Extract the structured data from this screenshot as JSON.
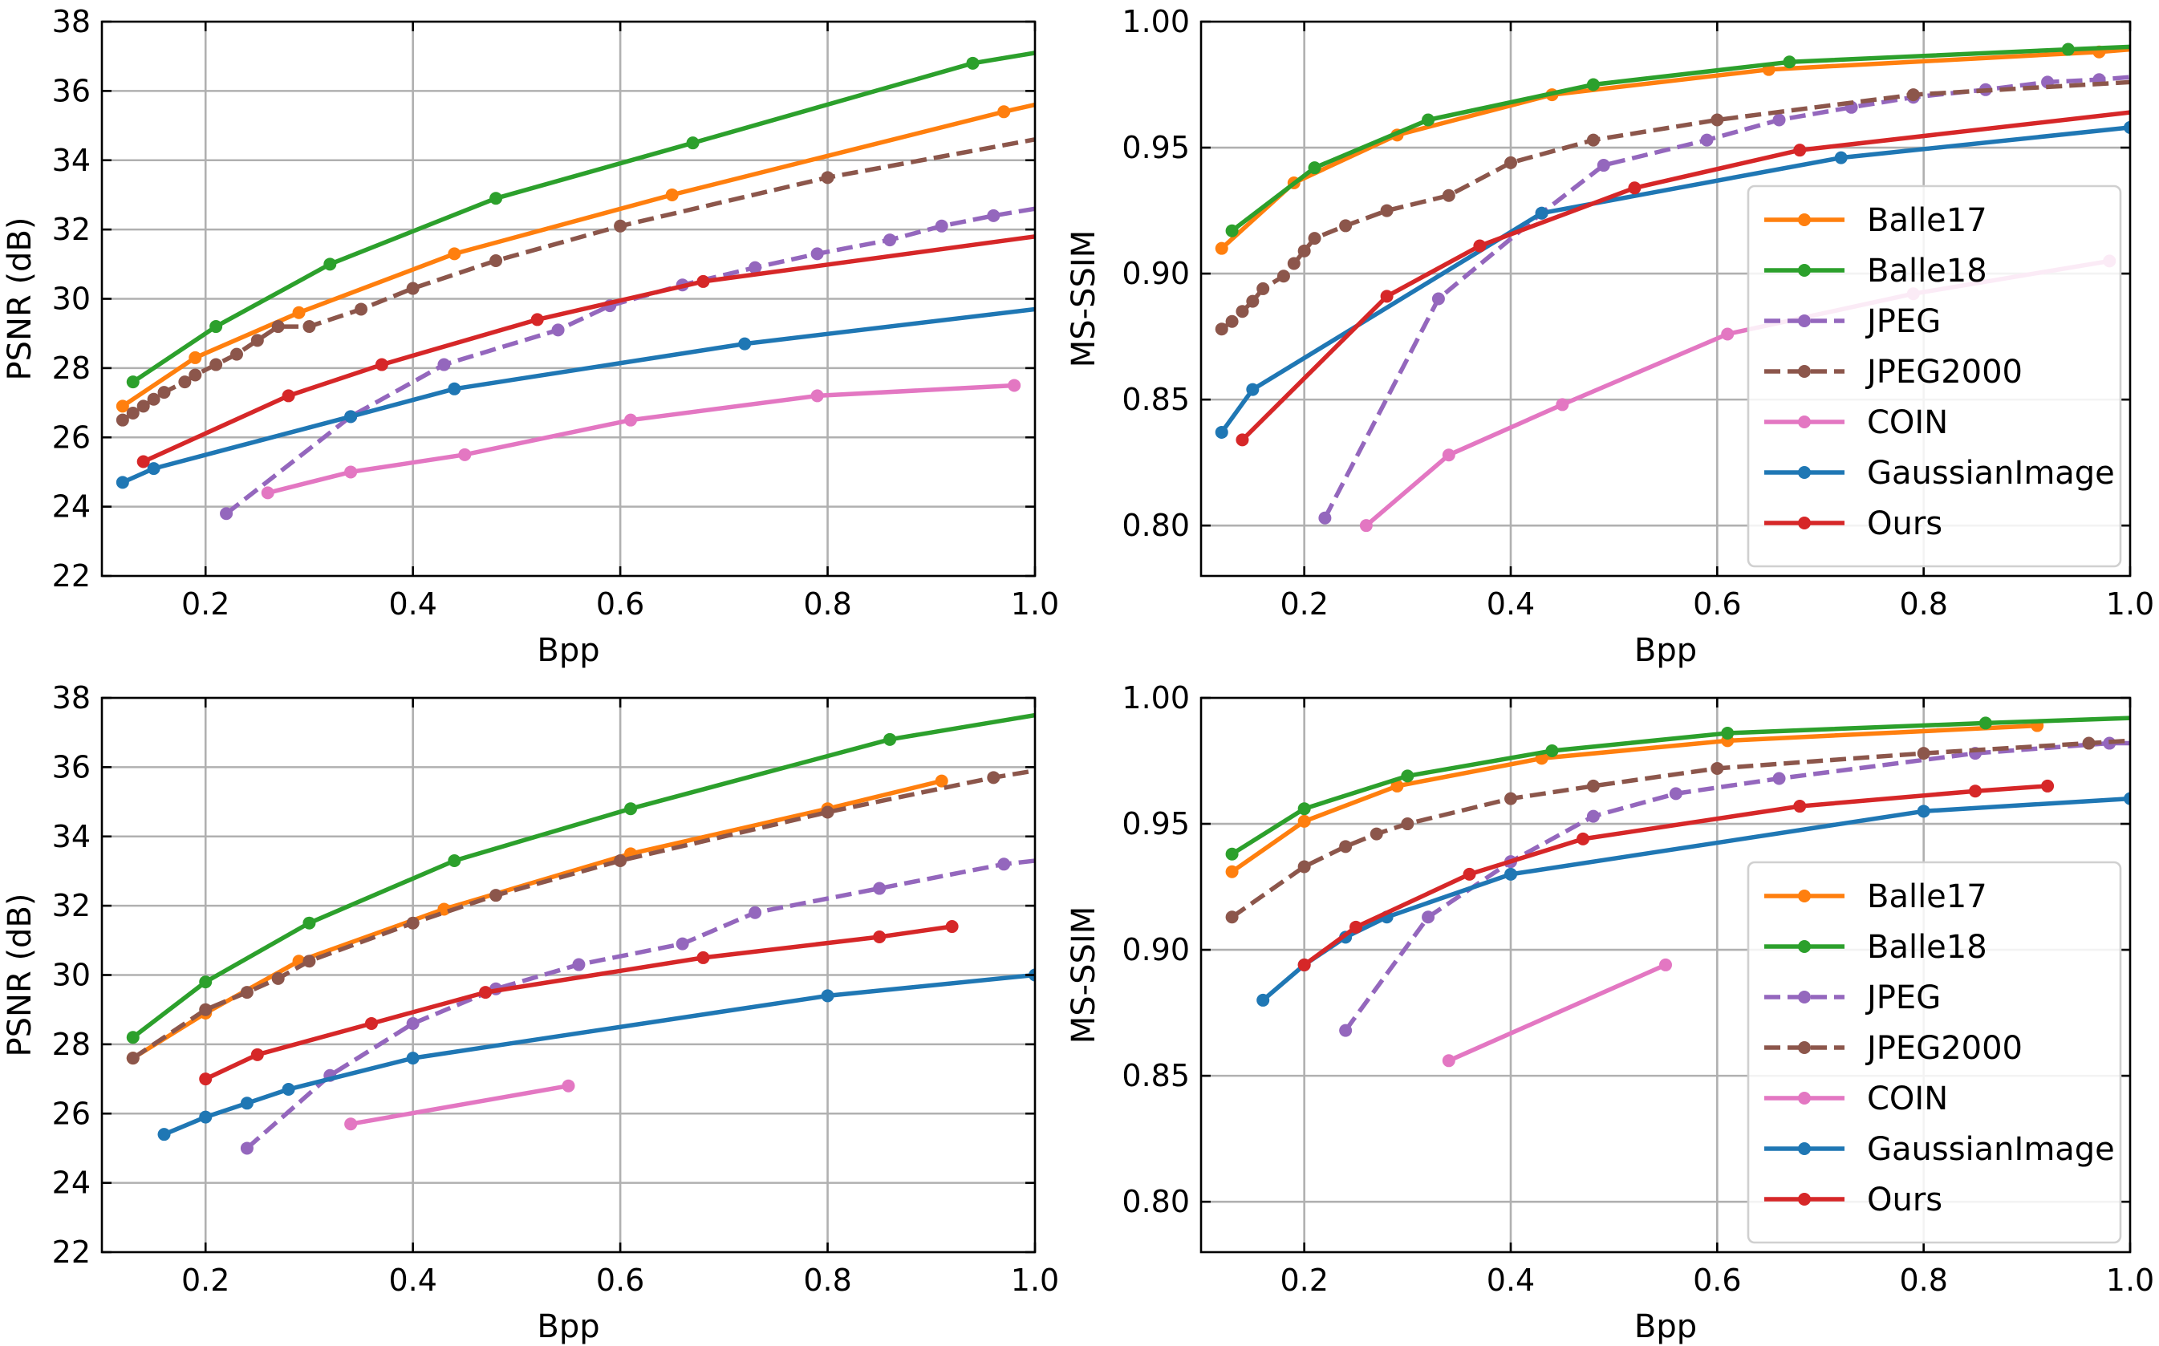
{
  "series_styles": [
    {
      "name": "Balle17",
      "color": "#ff7f0e",
      "dash": false
    },
    {
      "name": "Balle18",
      "color": "#2ca02c",
      "dash": false
    },
    {
      "name": "JPEG",
      "color": "#9467bd",
      "dash": true
    },
    {
      "name": "JPEG2000",
      "color": "#8c564b",
      "dash": true
    },
    {
      "name": "COIN",
      "color": "#e377c2",
      "dash": false
    },
    {
      "name": "GaussianImage",
      "color": "#1f77b4",
      "dash": false
    },
    {
      "name": "Ours",
      "color": "#d62728",
      "dash": false
    }
  ],
  "chart_data": [
    {
      "type": "line",
      "title": "",
      "xlabel": "Bpp",
      "ylabel": "PSNR (dB)",
      "xlim": [
        0.1,
        1.0
      ],
      "ylim": [
        22,
        38
      ],
      "xticks": [
        "0.2",
        "0.4",
        "0.6",
        "0.8",
        "1.0"
      ],
      "xtick_values": [
        0.2,
        0.4,
        0.6,
        0.8,
        1.0
      ],
      "yticks": [
        "22",
        "24",
        "26",
        "28",
        "30",
        "32",
        "34",
        "36",
        "38"
      ],
      "ytick_values": [
        22,
        24,
        26,
        28,
        30,
        32,
        34,
        36,
        38
      ],
      "grid": true,
      "legend": null,
      "series": [
        {
          "name": "Balle17",
          "x": [
            0.12,
            0.19,
            0.29,
            0.44,
            0.65,
            0.97
          ],
          "y": [
            26.9,
            28.3,
            29.6,
            31.3,
            33.0,
            35.4
          ],
          "line_to": [
            1.0,
            35.6
          ]
        },
        {
          "name": "Balle18",
          "x": [
            0.13,
            0.21,
            0.32,
            0.48,
            0.67,
            0.94
          ],
          "y": [
            27.6,
            29.2,
            31.0,
            32.9,
            34.5,
            36.8
          ],
          "line_to": [
            1.0,
            37.1
          ]
        },
        {
          "name": "JPEG",
          "x": [
            0.22,
            0.34,
            0.43,
            0.54,
            0.59,
            0.66,
            0.73,
            0.79,
            0.86,
            0.91,
            0.96
          ],
          "y": [
            23.8,
            26.6,
            28.1,
            29.1,
            29.8,
            30.4,
            30.9,
            31.3,
            31.7,
            32.1,
            32.4
          ],
          "line_to": [
            1.0,
            32.6
          ]
        },
        {
          "name": "JPEG2000",
          "x": [
            0.12,
            0.13,
            0.14,
            0.15,
            0.16,
            0.18,
            0.19,
            0.21,
            0.23,
            0.25,
            0.27,
            0.3,
            0.35,
            0.4,
            0.48,
            0.6,
            0.8
          ],
          "y": [
            26.5,
            26.7,
            26.9,
            27.1,
            27.3,
            27.6,
            27.8,
            28.1,
            28.4,
            28.8,
            29.2,
            29.2,
            29.7,
            30.3,
            31.1,
            32.1,
            33.5
          ],
          "line_to": [
            1.0,
            34.6
          ]
        },
        {
          "name": "COIN",
          "x": [
            0.26,
            0.34,
            0.45,
            0.61,
            0.79,
            0.98
          ],
          "y": [
            24.4,
            25.0,
            25.5,
            26.5,
            27.2,
            27.5
          ]
        },
        {
          "name": "GaussianImage",
          "x": [
            0.12,
            0.15,
            0.34,
            0.44,
            0.72
          ],
          "y": [
            24.7,
            25.1,
            26.6,
            27.4,
            28.7
          ],
          "line_to": [
            1.0,
            29.7
          ]
        },
        {
          "name": "Ours",
          "x": [
            0.14,
            0.28,
            0.37,
            0.52,
            0.68
          ],
          "y": [
            25.3,
            27.2,
            28.1,
            29.4,
            30.5
          ],
          "line_to": [
            1.0,
            31.8
          ]
        }
      ]
    },
    {
      "type": "line",
      "title": "",
      "xlabel": "Bpp",
      "ylabel": "MS-SSIM",
      "xlim": [
        0.1,
        1.0
      ],
      "ylim": [
        0.78,
        1.0
      ],
      "xticks": [
        "0.2",
        "0.4",
        "0.6",
        "0.8",
        "1.0"
      ],
      "xtick_values": [
        0.2,
        0.4,
        0.6,
        0.8,
        1.0
      ],
      "yticks": [
        "0.80",
        "0.85",
        "0.90",
        "0.95",
        "1.00"
      ],
      "ytick_values": [
        0.8,
        0.85,
        0.9,
        0.95,
        1.0
      ],
      "grid": true,
      "legend": "lower-right",
      "series": [
        {
          "name": "Balle17",
          "x": [
            0.12,
            0.19,
            0.29,
            0.44,
            0.65,
            0.97
          ],
          "y": [
            0.91,
            0.936,
            0.955,
            0.971,
            0.981,
            0.988
          ],
          "line_to": [
            1.0,
            0.989
          ]
        },
        {
          "name": "Balle18",
          "x": [
            0.13,
            0.21,
            0.32,
            0.48,
            0.67,
            0.94
          ],
          "y": [
            0.917,
            0.942,
            0.961,
            0.975,
            0.984,
            0.989
          ],
          "line_to": [
            1.0,
            0.99
          ]
        },
        {
          "name": "JPEG",
          "x": [
            0.22,
            0.33,
            0.43,
            0.49,
            0.59,
            0.66,
            0.73,
            0.79,
            0.86,
            0.92,
            0.97
          ],
          "y": [
            0.803,
            0.89,
            0.924,
            0.943,
            0.953,
            0.961,
            0.966,
            0.97,
            0.973,
            0.976,
            0.977
          ],
          "line_to": [
            1.0,
            0.978
          ]
        },
        {
          "name": "JPEG2000",
          "x": [
            0.12,
            0.13,
            0.14,
            0.15,
            0.16,
            0.18,
            0.19,
            0.2,
            0.21,
            0.24,
            0.28,
            0.34,
            0.4,
            0.48,
            0.6,
            0.79
          ],
          "y": [
            0.878,
            0.881,
            0.885,
            0.889,
            0.894,
            0.899,
            0.904,
            0.909,
            0.914,
            0.919,
            0.925,
            0.931,
            0.944,
            0.953,
            0.961,
            0.971
          ],
          "line_to": [
            1.0,
            0.976
          ]
        },
        {
          "name": "COIN",
          "x": [
            0.26,
            0.34,
            0.45,
            0.61,
            0.79,
            0.98
          ],
          "y": [
            0.8,
            0.828,
            0.848,
            0.876,
            0.892,
            0.905
          ]
        },
        {
          "name": "GaussianImage",
          "x": [
            0.12,
            0.15,
            0.43,
            0.72,
            1.0
          ],
          "y": [
            0.837,
            0.854,
            0.924,
            0.946,
            0.958
          ]
        },
        {
          "name": "Ours",
          "x": [
            0.14,
            0.28,
            0.37,
            0.52,
            0.68
          ],
          "y": [
            0.834,
            0.891,
            0.911,
            0.934,
            0.949
          ],
          "line_to": [
            1.0,
            0.964
          ]
        }
      ]
    },
    {
      "type": "line",
      "title": "",
      "xlabel": "Bpp",
      "ylabel": "PSNR (dB)",
      "xlim": [
        0.1,
        1.0
      ],
      "ylim": [
        22,
        38
      ],
      "xticks": [
        "0.2",
        "0.4",
        "0.6",
        "0.8",
        "1.0"
      ],
      "xtick_values": [
        0.2,
        0.4,
        0.6,
        0.8,
        1.0
      ],
      "yticks": [
        "22",
        "24",
        "26",
        "28",
        "30",
        "32",
        "34",
        "36",
        "38"
      ],
      "ytick_values": [
        22,
        24,
        26,
        28,
        30,
        32,
        34,
        36,
        38
      ],
      "grid": true,
      "legend": null,
      "series": [
        {
          "name": "Balle17",
          "x": [
            0.13,
            0.2,
            0.29,
            0.43,
            0.61,
            0.8,
            0.91
          ],
          "y": [
            27.6,
            28.9,
            30.4,
            31.9,
            33.5,
            34.8,
            35.6
          ]
        },
        {
          "name": "Balle18",
          "x": [
            0.13,
            0.2,
            0.3,
            0.44,
            0.61,
            0.86
          ],
          "y": [
            28.2,
            29.8,
            31.5,
            33.3,
            34.8,
            36.8
          ],
          "line_to": [
            1.0,
            37.5
          ]
        },
        {
          "name": "JPEG",
          "x": [
            0.24,
            0.32,
            0.4,
            0.48,
            0.56,
            0.66,
            0.73,
            0.85,
            0.97
          ],
          "y": [
            25.0,
            27.1,
            28.6,
            29.6,
            30.3,
            30.9,
            31.8,
            32.5,
            33.2
          ],
          "line_to": [
            1.0,
            33.3
          ]
        },
        {
          "name": "JPEG2000",
          "x": [
            0.13,
            0.2,
            0.24,
            0.27,
            0.3,
            0.4,
            0.48,
            0.6,
            0.8,
            0.96
          ],
          "y": [
            27.6,
            29.0,
            29.5,
            29.9,
            30.4,
            31.5,
            32.3,
            33.3,
            34.7,
            35.7
          ],
          "line_to": [
            1.0,
            35.9
          ]
        },
        {
          "name": "COIN",
          "x": [
            0.34,
            0.55
          ],
          "y": [
            25.7,
            26.8
          ]
        },
        {
          "name": "GaussianImage",
          "x": [
            0.16,
            0.2,
            0.24,
            0.28,
            0.4,
            0.8,
            1.0
          ],
          "y": [
            25.4,
            25.9,
            26.3,
            26.7,
            27.6,
            29.4,
            30.0
          ]
        },
        {
          "name": "Ours",
          "x": [
            0.2,
            0.25,
            0.36,
            0.47,
            0.68,
            0.85,
            0.92
          ],
          "y": [
            27.0,
            27.7,
            28.6,
            29.5,
            30.5,
            31.1,
            31.4
          ]
        }
      ]
    },
    {
      "type": "line",
      "title": "",
      "xlabel": "Bpp",
      "ylabel": "MS-SSIM",
      "xlim": [
        0.1,
        1.0
      ],
      "ylim": [
        0.78,
        1.0
      ],
      "xticks": [
        "0.2",
        "0.4",
        "0.6",
        "0.8",
        "1.0"
      ],
      "xtick_values": [
        0.2,
        0.4,
        0.6,
        0.8,
        1.0
      ],
      "yticks": [
        "0.80",
        "0.85",
        "0.90",
        "0.95",
        "1.00"
      ],
      "ytick_values": [
        0.8,
        0.85,
        0.9,
        0.95,
        1.0
      ],
      "grid": true,
      "legend": "lower-right",
      "series": [
        {
          "name": "Balle17",
          "x": [
            0.13,
            0.2,
            0.29,
            0.43,
            0.61,
            0.91
          ],
          "y": [
            0.931,
            0.951,
            0.965,
            0.976,
            0.983,
            0.989
          ]
        },
        {
          "name": "Balle18",
          "x": [
            0.13,
            0.2,
            0.3,
            0.44,
            0.61,
            0.86
          ],
          "y": [
            0.938,
            0.956,
            0.969,
            0.979,
            0.986,
            0.99
          ],
          "line_to": [
            1.0,
            0.992
          ]
        },
        {
          "name": "JPEG",
          "x": [
            0.24,
            0.32,
            0.4,
            0.48,
            0.56,
            0.66,
            0.85,
            0.98
          ],
          "y": [
            0.868,
            0.913,
            0.935,
            0.953,
            0.962,
            0.968,
            0.978,
            0.982
          ],
          "line_to": [
            1.0,
            0.982
          ]
        },
        {
          "name": "JPEG2000",
          "x": [
            0.13,
            0.2,
            0.24,
            0.27,
            0.3,
            0.4,
            0.48,
            0.6,
            0.8,
            0.96
          ],
          "y": [
            0.913,
            0.933,
            0.941,
            0.946,
            0.95,
            0.96,
            0.965,
            0.972,
            0.978,
            0.982
          ],
          "line_to": [
            1.0,
            0.983
          ]
        },
        {
          "name": "COIN",
          "x": [
            0.34,
            0.55
          ],
          "y": [
            0.856,
            0.894
          ]
        },
        {
          "name": "GaussianImage",
          "x": [
            0.16,
            0.2,
            0.24,
            0.28,
            0.4,
            0.8,
            1.0
          ],
          "y": [
            0.88,
            0.894,
            0.905,
            0.913,
            0.93,
            0.955,
            0.96
          ]
        },
        {
          "name": "Ours",
          "x": [
            0.2,
            0.25,
            0.36,
            0.47,
            0.68,
            0.85,
            0.92
          ],
          "y": [
            0.894,
            0.909,
            0.93,
            0.944,
            0.957,
            0.963,
            0.965
          ]
        }
      ]
    }
  ]
}
